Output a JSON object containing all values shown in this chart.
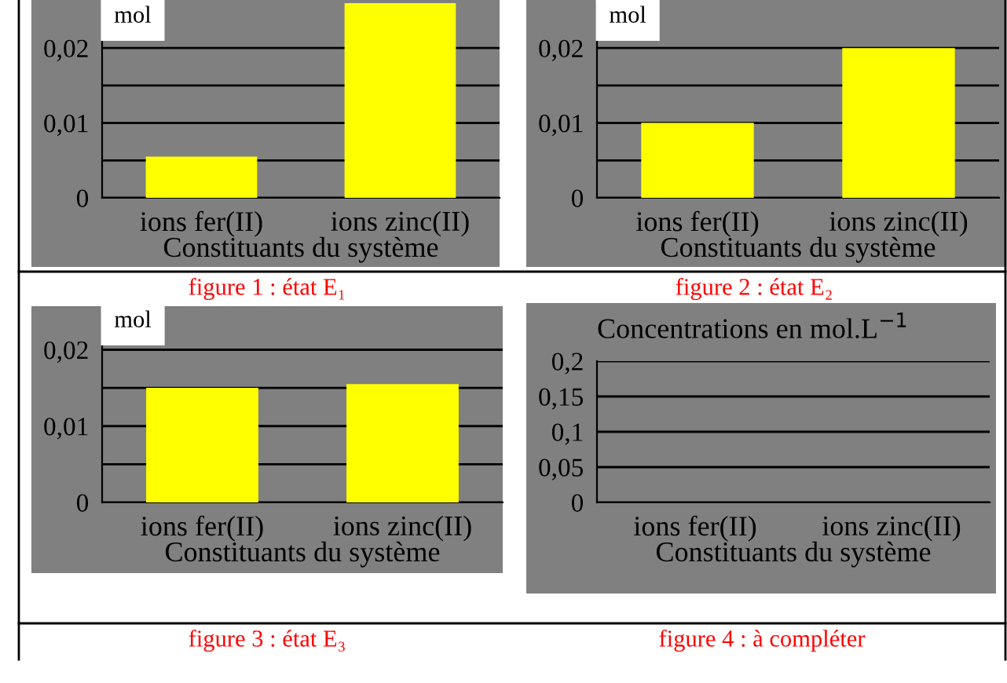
{
  "chart_data": [
    {
      "type": "bar",
      "ylabel": "mol",
      "xlabel": "Constituants du système",
      "categories": [
        "ions fer(II)",
        "ions zinc(II)"
      ],
      "series": [
        {
          "color": "#ffff00",
          "values": [
            0.0055,
            0.026
          ]
        }
      ],
      "ylim": [
        0,
        0.026
      ],
      "yticks": [
        0,
        {
          "value": 0.005,
          "label": null
        },
        {
          "value": 0.01,
          "label": "0,01"
        },
        {
          "value": 0.015,
          "label": null
        },
        {
          "value": 0.02,
          "label": "0,02"
        }
      ],
      "grid": "y",
      "annotations": [
        "figure 1 : état E₁"
      ]
    },
    {
      "type": "bar",
      "ylabel": "mol",
      "xlabel": "Constituants du système",
      "categories": [
        "ions fer(II)",
        "ions zinc(II)"
      ],
      "series": [
        {
          "color": "#ffff00",
          "values": [
            0.01,
            0.02
          ]
        }
      ],
      "ylim": [
        0,
        0.026
      ],
      "yticks": [
        0,
        {
          "value": 0.005,
          "label": null
        },
        {
          "value": 0.01,
          "label": "0,01"
        },
        {
          "value": 0.015,
          "label": null
        },
        {
          "value": 0.02,
          "label": "0,02"
        }
      ],
      "grid": "y",
      "annotations": [
        "figure 2 : état E₂"
      ]
    },
    {
      "type": "bar",
      "ylabel": "mol",
      "xlabel": "Constituants du système",
      "categories": [
        "ions fer(II)",
        "ions zinc(II)"
      ],
      "series": [
        {
          "color": "#ffff00",
          "values": [
            0.015,
            0.0155
          ]
        }
      ],
      "ylim": [
        0,
        0.0255
      ],
      "yticks": [
        0,
        {
          "value": 0.005,
          "label": null
        },
        {
          "value": 0.01,
          "label": "0,01"
        },
        {
          "value": 0.015,
          "label": null
        },
        {
          "value": 0.02,
          "label": "0,02"
        }
      ],
      "grid": "y",
      "annotations": [
        "figure 3 : état E₃"
      ]
    },
    {
      "type": "bar",
      "ylabel": "Concentrations en mol.L$^{−1}$",
      "xlabel": "Constituants du système",
      "categories": [
        "ions fer(II)",
        "ions zinc(II)"
      ],
      "series": [
        {
          "color": "#808080",
          "values": [
            null,
            null
          ]
        }
      ],
      "ylim": [
        0,
        0.2
      ],
      "yticks": [
        0,
        {
          "value": 0.05,
          "label": "0,05"
        },
        {
          "value": 0.1,
          "label": "0,1"
        },
        {
          "value": 0.15,
          "label": "0,15"
        },
        {
          "value": 0.2,
          "label": "0,2"
        }
      ],
      "grid": "y",
      "annotations": [
        "figure 4 : à compléter"
      ]
    }
  ]
}
